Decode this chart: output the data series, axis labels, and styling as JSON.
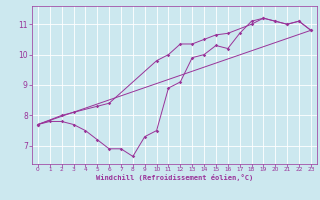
{
  "xlabel": "Windchill (Refroidissement éolien,°C)",
  "xlim": [
    -0.5,
    23.5
  ],
  "ylim": [
    6.4,
    11.6
  ],
  "yticks": [
    7,
    8,
    9,
    10,
    11
  ],
  "xticks": [
    0,
    1,
    2,
    3,
    4,
    5,
    6,
    7,
    8,
    9,
    10,
    11,
    12,
    13,
    14,
    15,
    16,
    17,
    18,
    19,
    20,
    21,
    22,
    23
  ],
  "bg_color": "#cce8ef",
  "line_color": "#993399",
  "grid_color": "#ffffff",
  "line1_x": [
    0,
    1,
    2,
    3,
    4,
    5,
    6,
    7,
    8,
    9,
    10,
    11,
    12,
    13,
    14,
    15,
    16,
    17,
    18,
    19,
    20,
    21,
    22,
    23
  ],
  "line1_y": [
    7.7,
    7.8,
    7.8,
    7.7,
    7.5,
    7.2,
    6.9,
    6.9,
    6.65,
    7.3,
    7.5,
    8.9,
    9.1,
    9.9,
    10.0,
    10.3,
    10.2,
    10.7,
    11.1,
    11.2,
    11.1,
    11.0,
    11.1,
    10.8
  ],
  "line2_x": [
    0,
    2,
    3,
    5,
    6,
    10,
    11,
    12,
    13,
    14,
    15,
    16,
    18,
    19,
    20,
    21,
    22,
    23
  ],
  "line2_y": [
    7.7,
    8.0,
    8.1,
    8.3,
    8.4,
    9.8,
    10.0,
    10.35,
    10.35,
    10.5,
    10.65,
    10.7,
    11.0,
    11.2,
    11.1,
    11.0,
    11.1,
    10.8
  ],
  "line3_x": [
    0,
    23
  ],
  "line3_y": [
    7.7,
    10.8
  ]
}
